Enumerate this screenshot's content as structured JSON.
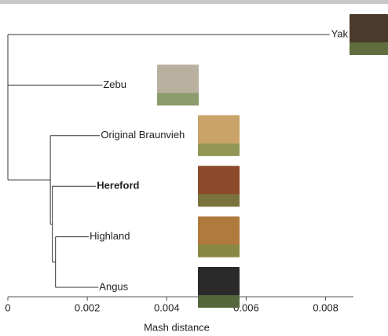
{
  "chart_data": {
    "type": "dendrogram",
    "xlabel": "Mash distance",
    "xlim": [
      0,
      0.0087
    ],
    "xticks": [
      0,
      0.002,
      0.004,
      0.006,
      0.008
    ],
    "color": "#333333",
    "nodes": [
      {
        "x": 0,
        "children": [
          1,
          2,
          3
        ]
      },
      {
        "x": 0.0081,
        "label": "Yak"
      },
      {
        "x": 0.00238,
        "label": "Zebu"
      },
      {
        "x": 0.00107,
        "children": [
          4,
          5
        ]
      },
      {
        "x": 0.00232,
        "label": "Original Braunvieh"
      },
      {
        "x": 0.00112,
        "children": [
          6,
          7
        ]
      },
      {
        "x": 0.00222,
        "label": "Hereford",
        "bold": true
      },
      {
        "x": 0.0012,
        "children": [
          8,
          9
        ]
      },
      {
        "x": 0.00204,
        "label": "Highland"
      },
      {
        "x": 0.00228,
        "label": "Angus"
      }
    ]
  }
}
